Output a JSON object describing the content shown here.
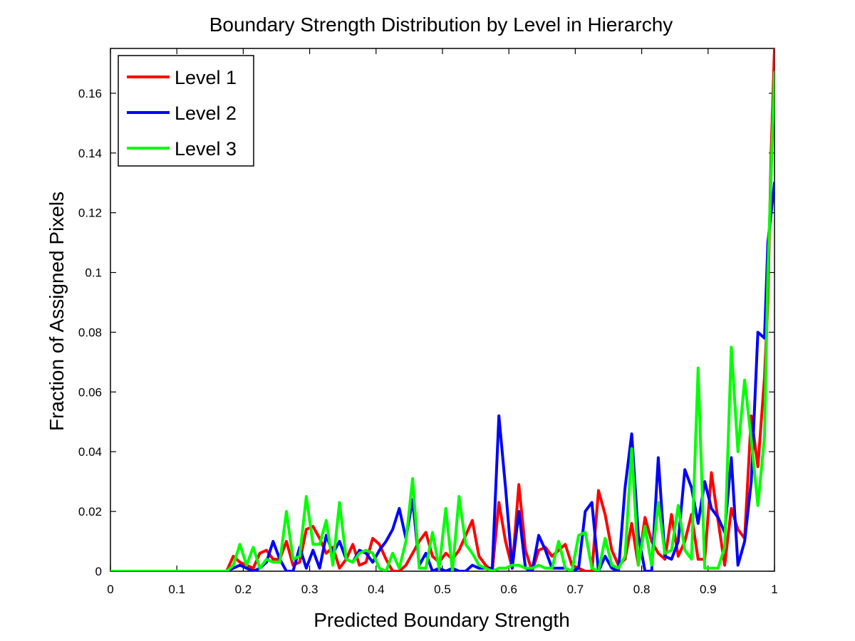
{
  "chart_data": {
    "type": "line",
    "title": "Boundary Strength Distribution by Level in Hierarchy",
    "xlabel": "Predicted Boundary Strength",
    "ylabel": "Fraction of Assigned Pixels",
    "xlim": [
      0,
      1
    ],
    "ylim": [
      0,
      0.175
    ],
    "x_ticks": [
      "0",
      "0.1",
      "0.2",
      "0.3",
      "0.4",
      "0.5",
      "0.6",
      "0.7",
      "0.8",
      "0.9",
      "1"
    ],
    "y_ticks": [
      "0",
      "0.02",
      "0.04",
      "0.06",
      "0.08",
      "0.1",
      "0.12",
      "0.14",
      "0.16"
    ],
    "grid": false,
    "legend_position": "top-left",
    "series": [
      {
        "name": "Level 1",
        "color": "#ff0000",
        "points": [
          [
            0,
            0
          ],
          [
            0.175,
            0
          ],
          [
            0.185,
            0.005
          ],
          [
            0.195,
            0.003
          ],
          [
            0.205,
            0.002
          ],
          [
            0.215,
            0.001
          ],
          [
            0.225,
            0.006
          ],
          [
            0.235,
            0.007
          ],
          [
            0.245,
            0.004
          ],
          [
            0.255,
            0.004
          ],
          [
            0.265,
            0.01
          ],
          [
            0.275,
            0.002
          ],
          [
            0.285,
            0.003
          ],
          [
            0.295,
            0.014
          ],
          [
            0.305,
            0.015
          ],
          [
            0.315,
            0.011
          ],
          [
            0.325,
            0.006
          ],
          [
            0.335,
            0.008
          ],
          [
            0.345,
            0.001
          ],
          [
            0.355,
            0.004
          ],
          [
            0.365,
            0.009
          ],
          [
            0.375,
            0.002
          ],
          [
            0.385,
            0.003
          ],
          [
            0.395,
            0.011
          ],
          [
            0.405,
            0.009
          ],
          [
            0.415,
            0.004
          ],
          [
            0.425,
            0
          ],
          [
            0.435,
            0
          ],
          [
            0.445,
            0.002
          ],
          [
            0.455,
            0.006
          ],
          [
            0.465,
            0.01
          ],
          [
            0.475,
            0.013
          ],
          [
            0.485,
            0.005
          ],
          [
            0.495,
            0.003
          ],
          [
            0.505,
            0.006
          ],
          [
            0.515,
            0.004
          ],
          [
            0.525,
            0.007
          ],
          [
            0.535,
            0.012
          ],
          [
            0.545,
            0.017
          ],
          [
            0.555,
            0.005
          ],
          [
            0.565,
            0.002
          ],
          [
            0.575,
            0
          ],
          [
            0.585,
            0.023
          ],
          [
            0.595,
            0.01
          ],
          [
            0.605,
            0.001
          ],
          [
            0.615,
            0.029
          ],
          [
            0.625,
            0.007
          ],
          [
            0.635,
            0
          ],
          [
            0.645,
            0.007
          ],
          [
            0.655,
            0.008
          ],
          [
            0.665,
            0.005
          ],
          [
            0.675,
            0.007
          ],
          [
            0.685,
            0.009
          ],
          [
            0.695,
            0.002
          ],
          [
            0.705,
            0.001
          ],
          [
            0.715,
            0
          ],
          [
            0.725,
            0
          ],
          [
            0.735,
            0.027
          ],
          [
            0.745,
            0.019
          ],
          [
            0.755,
            0.007
          ],
          [
            0.765,
            0.002
          ],
          [
            0.775,
            0.004
          ],
          [
            0.785,
            0.016
          ],
          [
            0.795,
            0.002
          ],
          [
            0.805,
            0.018
          ],
          [
            0.815,
            0.01
          ],
          [
            0.825,
            0.006
          ],
          [
            0.835,
            0.004
          ],
          [
            0.845,
            0.019
          ],
          [
            0.855,
            0.005
          ],
          [
            0.865,
            0.01
          ],
          [
            0.875,
            0.019
          ],
          [
            0.885,
            0.004
          ],
          [
            0.895,
            0.004
          ],
          [
            0.905,
            0.033
          ],
          [
            0.915,
            0.017
          ],
          [
            0.925,
            0.002
          ],
          [
            0.935,
            0.021
          ],
          [
            0.945,
            0.014
          ],
          [
            0.955,
            0.011
          ],
          [
            0.965,
            0.052
          ],
          [
            0.975,
            0.035
          ],
          [
            0.985,
            0.065
          ],
          [
            0.99,
            0.09
          ],
          [
            0.995,
            0.14
          ],
          [
            1.0,
            0.175
          ]
        ]
      },
      {
        "name": "Level 2",
        "color": "#0000ff",
        "points": [
          [
            0,
            0
          ],
          [
            0.175,
            0
          ],
          [
            0.185,
            0.001
          ],
          [
            0.195,
            0.002
          ],
          [
            0.205,
            0.001
          ],
          [
            0.215,
            0
          ],
          [
            0.225,
            0.001
          ],
          [
            0.235,
            0.003
          ],
          [
            0.245,
            0.01
          ],
          [
            0.255,
            0.004
          ],
          [
            0.265,
            0
          ],
          [
            0.275,
            0
          ],
          [
            0.285,
            0.008
          ],
          [
            0.295,
            0.001
          ],
          [
            0.305,
            0.007
          ],
          [
            0.315,
            0.001
          ],
          [
            0.325,
            0.012
          ],
          [
            0.335,
            0.006
          ],
          [
            0.345,
            0.01
          ],
          [
            0.355,
            0.004
          ],
          [
            0.365,
            0.003
          ],
          [
            0.375,
            0.007
          ],
          [
            0.385,
            0.006
          ],
          [
            0.395,
            0.003
          ],
          [
            0.405,
            0.007
          ],
          [
            0.415,
            0.01
          ],
          [
            0.425,
            0.014
          ],
          [
            0.435,
            0.021
          ],
          [
            0.445,
            0.011
          ],
          [
            0.455,
            0.024
          ],
          [
            0.465,
            0.002
          ],
          [
            0.475,
            0.006
          ],
          [
            0.485,
            0
          ],
          [
            0.495,
            0.001
          ],
          [
            0.505,
            0
          ],
          [
            0.515,
            0.001
          ],
          [
            0.525,
            0
          ],
          [
            0.535,
            0
          ],
          [
            0.545,
            0.002
          ],
          [
            0.555,
            0.001
          ],
          [
            0.565,
            0.001
          ],
          [
            0.575,
            0.001
          ],
          [
            0.585,
            0.052
          ],
          [
            0.595,
            0.028
          ],
          [
            0.605,
            0.001
          ],
          [
            0.615,
            0.02
          ],
          [
            0.625,
            0.001
          ],
          [
            0.635,
            0
          ],
          [
            0.645,
            0.012
          ],
          [
            0.655,
            0.007
          ],
          [
            0.665,
            0.001
          ],
          [
            0.675,
            0.001
          ],
          [
            0.685,
            0.001
          ],
          [
            0.695,
            0
          ],
          [
            0.705,
            0.001
          ],
          [
            0.715,
            0.02
          ],
          [
            0.725,
            0.023
          ],
          [
            0.735,
            0
          ],
          [
            0.745,
            0.005
          ],
          [
            0.755,
            0.001
          ],
          [
            0.765,
            0
          ],
          [
            0.775,
            0.028
          ],
          [
            0.785,
            0.046
          ],
          [
            0.795,
            0.012
          ],
          [
            0.805,
            0
          ],
          [
            0.815,
            0
          ],
          [
            0.825,
            0.038
          ],
          [
            0.835,
            0.005
          ],
          [
            0.845,
            0.004
          ],
          [
            0.855,
            0.01
          ],
          [
            0.865,
            0.034
          ],
          [
            0.875,
            0.028
          ],
          [
            0.885,
            0.016
          ],
          [
            0.895,
            0.03
          ],
          [
            0.905,
            0.021
          ],
          [
            0.915,
            0.018
          ],
          [
            0.925,
            0.013
          ],
          [
            0.935,
            0.038
          ],
          [
            0.945,
            0.002
          ],
          [
            0.955,
            0.01
          ],
          [
            0.965,
            0.03
          ],
          [
            0.975,
            0.08
          ],
          [
            0.985,
            0.078
          ],
          [
            0.99,
            0.11
          ],
          [
            1.0,
            0.13
          ]
        ]
      },
      {
        "name": "Level 3",
        "color": "#00ff00",
        "points": [
          [
            0,
            0
          ],
          [
            0.175,
            0
          ],
          [
            0.185,
            0.002
          ],
          [
            0.195,
            0.009
          ],
          [
            0.205,
            0.002
          ],
          [
            0.215,
            0.008
          ],
          [
            0.225,
            0.001
          ],
          [
            0.235,
            0.004
          ],
          [
            0.245,
            0.003
          ],
          [
            0.255,
            0.003
          ],
          [
            0.265,
            0.02
          ],
          [
            0.275,
            0.004
          ],
          [
            0.285,
            0.005
          ],
          [
            0.295,
            0.025
          ],
          [
            0.305,
            0.009
          ],
          [
            0.315,
            0.009
          ],
          [
            0.325,
            0.017
          ],
          [
            0.335,
            0.002
          ],
          [
            0.345,
            0.023
          ],
          [
            0.355,
            0.004
          ],
          [
            0.365,
            0.003
          ],
          [
            0.375,
            0.006
          ],
          [
            0.385,
            0.007
          ],
          [
            0.395,
            0.006
          ],
          [
            0.405,
            0.001
          ],
          [
            0.415,
            0
          ],
          [
            0.425,
            0.006
          ],
          [
            0.435,
            0.001
          ],
          [
            0.445,
            0.01
          ],
          [
            0.455,
            0.031
          ],
          [
            0.465,
            0.001
          ],
          [
            0.475,
            0.001
          ],
          [
            0.485,
            0.013
          ],
          [
            0.495,
            0.001
          ],
          [
            0.505,
            0.021
          ],
          [
            0.515,
            0
          ],
          [
            0.525,
            0.025
          ],
          [
            0.535,
            0.009
          ],
          [
            0.545,
            0.006
          ],
          [
            0.555,
            0.002
          ],
          [
            0.565,
            0.001
          ],
          [
            0.575,
            0
          ],
          [
            0.585,
            0.001
          ],
          [
            0.595,
            0.001
          ],
          [
            0.605,
            0.002
          ],
          [
            0.615,
            0.002
          ],
          [
            0.625,
            0.001
          ],
          [
            0.635,
            0.001
          ],
          [
            0.645,
            0.002
          ],
          [
            0.655,
            0.001
          ],
          [
            0.665,
            0.001
          ],
          [
            0.675,
            0.01
          ],
          [
            0.685,
            0.001
          ],
          [
            0.695,
            0
          ],
          [
            0.705,
            0.012
          ],
          [
            0.715,
            0.013
          ],
          [
            0.725,
            0.001
          ],
          [
            0.735,
            0
          ],
          [
            0.745,
            0.011
          ],
          [
            0.755,
            0.002
          ],
          [
            0.765,
            0.001
          ],
          [
            0.775,
            0.005
          ],
          [
            0.785,
            0.041
          ],
          [
            0.795,
            0.002
          ],
          [
            0.805,
            0.015
          ],
          [
            0.815,
            0.002
          ],
          [
            0.825,
            0.023
          ],
          [
            0.835,
            0.006
          ],
          [
            0.845,
            0.007
          ],
          [
            0.855,
            0.022
          ],
          [
            0.865,
            0.007
          ],
          [
            0.875,
            0.004
          ],
          [
            0.885,
            0.068
          ],
          [
            0.895,
            0.001
          ],
          [
            0.905,
            0.001
          ],
          [
            0.915,
            0.001
          ],
          [
            0.925,
            0.008
          ],
          [
            0.935,
            0.075
          ],
          [
            0.945,
            0.04
          ],
          [
            0.955,
            0.064
          ],
          [
            0.965,
            0.044
          ],
          [
            0.975,
            0.022
          ],
          [
            0.985,
            0.045
          ],
          [
            0.99,
            0.1
          ],
          [
            1.0,
            0.167
          ]
        ]
      }
    ]
  }
}
